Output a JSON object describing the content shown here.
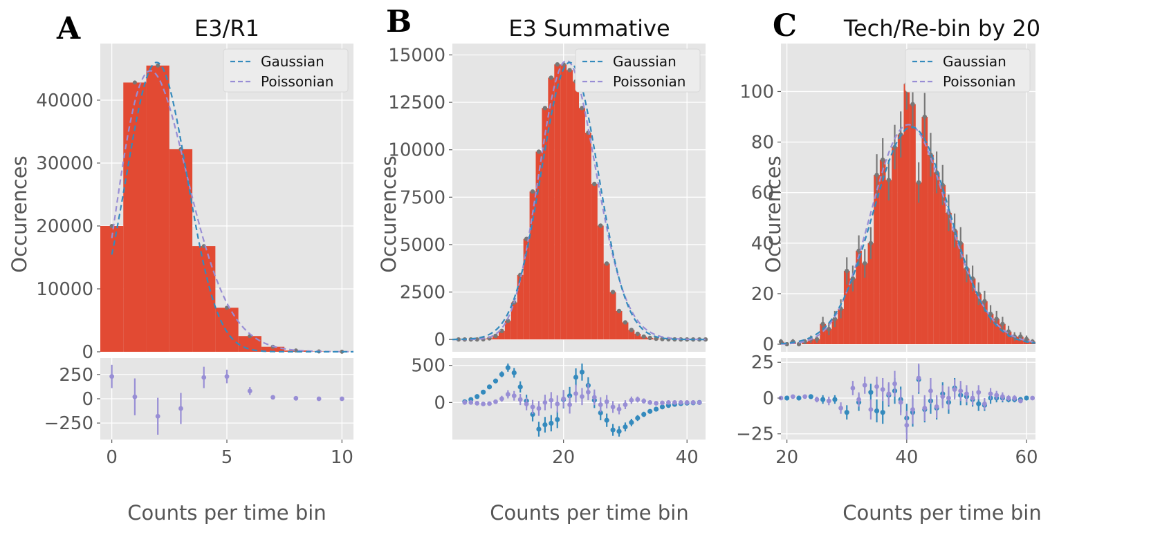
{
  "panels": [
    {
      "letter": "A",
      "title": "E3/R1",
      "xlabel": "Counts per time bin",
      "ylabel": "Occurences"
    },
    {
      "letter": "B",
      "title": "E3 Summative",
      "xlabel": "Counts per time bin",
      "ylabel": "Occurences"
    },
    {
      "letter": "C",
      "title": "Tech/Re-bin by 20",
      "xlabel": "Counts per time bin",
      "ylabel": "Occurences"
    }
  ],
  "colors": {
    "histogram": "#e24a33",
    "histogram_edge": "#c0392b",
    "gaussian": "#348abd",
    "poissonian": "#988ed5",
    "markers": "#777777",
    "plot_background": "#e5e5e5"
  },
  "chart_data": [
    {
      "type": "bar",
      "title": "E3/R1",
      "xlabel": "Counts per time bin",
      "ylabel": "Occurences",
      "grid": true,
      "legend": {
        "placement": "top-right",
        "entries": [
          "Gaussian",
          "Poissonian"
        ]
      },
      "main": {
        "xlim": [
          -0.5,
          10.5
        ],
        "ylim": [
          0,
          49000
        ],
        "xticks": [
          0,
          5,
          10
        ],
        "yticks": [
          0,
          10000,
          20000,
          30000,
          40000
        ],
        "ytick_labels": [
          "0",
          "10000",
          "20000",
          "30000",
          "40000"
        ],
        "bins": [
          0,
          1,
          2,
          3,
          4,
          5,
          6,
          7,
          8,
          9,
          10
        ],
        "bar_width": 1.0,
        "values": [
          20000,
          42800,
          45500,
          32200,
          16800,
          7000,
          2500,
          800,
          200,
          50,
          10
        ],
        "gaussian_fit": {
          "mean": 1.95,
          "sigma": 1.32,
          "amplitude": 46000
        },
        "poissonian_fit": {
          "lambda": 2.2,
          "total": 163000
        }
      },
      "residuals": {
        "xlim": [
          -0.5,
          10.5
        ],
        "ylim": [
          -420,
          420
        ],
        "yticks": [
          -250,
          0,
          250
        ],
        "ytick_labels": [
          "−250",
          "0",
          "250"
        ],
        "gaussian": [],
        "poissonian": {
          "x": [
            0,
            1,
            2,
            3,
            4,
            5,
            6,
            7,
            8,
            9,
            10
          ],
          "y": [
            230,
            20,
            -180,
            -100,
            220,
            230,
            80,
            15,
            5,
            0,
            0
          ],
          "err": [
            120,
            190,
            190,
            160,
            110,
            70,
            40,
            20,
            10,
            5,
            3
          ]
        }
      }
    },
    {
      "type": "bar",
      "title": "E3 Summative",
      "xlabel": "Counts per time bin",
      "ylabel": "Occurences",
      "grid": true,
      "legend": {
        "placement": "top-right",
        "entries": [
          "Gaussian",
          "Poissonian"
        ]
      },
      "main": {
        "xlim": [
          2,
          43
        ],
        "ylim": [
          -650,
          15600
        ],
        "xticks": [
          20,
          40
        ],
        "yticks": [
          0,
          2500,
          5000,
          7500,
          10000,
          12500,
          15000
        ],
        "ytick_labels": [
          "0",
          "2500",
          "5000",
          "7500",
          "10000",
          "12500",
          "15000"
        ],
        "bins": [
          3,
          4,
          5,
          6,
          7,
          8,
          9,
          10,
          11,
          12,
          13,
          14,
          15,
          16,
          17,
          18,
          19,
          20,
          21,
          22,
          23,
          24,
          25,
          26,
          27,
          28,
          29,
          30,
          31,
          32,
          33,
          34,
          35,
          36,
          37,
          38,
          39,
          40,
          41,
          42,
          43
        ],
        "bar_width": 1.0,
        "values": [
          0,
          0,
          0,
          0,
          10,
          60,
          190,
          450,
          980,
          1950,
          3400,
          5300,
          7800,
          9900,
          12200,
          13800,
          14500,
          14500,
          14200,
          13600,
          12200,
          10900,
          8200,
          6000,
          4000,
          2500,
          1500,
          900,
          500,
          300,
          150,
          80,
          40,
          20,
          10,
          5,
          0,
          0,
          0,
          0,
          0
        ],
        "gaussian_fit": {
          "mean": 21.0,
          "sigma": 4.6,
          "amplitude": 14600
        },
        "poissonian_fit": {
          "lambda": 21.0,
          "total": 168500
        }
      },
      "residuals": {
        "xlim": [
          2,
          43
        ],
        "ylim": [
          -500,
          600
        ],
        "yticks": [
          0,
          500
        ],
        "ytick_labels": [
          "0",
          "500"
        ],
        "gaussian": {
          "x": [
            4,
            5,
            6,
            7,
            8,
            9,
            10,
            11,
            12,
            13,
            14,
            15,
            16,
            17,
            18,
            19,
            20,
            21,
            22,
            23,
            24,
            25,
            26,
            27,
            28,
            29,
            30,
            31,
            32,
            33,
            34,
            35,
            36,
            37,
            38,
            39,
            40,
            41,
            42
          ],
          "y": [
            10,
            40,
            80,
            140,
            210,
            290,
            380,
            470,
            400,
            210,
            20,
            -160,
            -360,
            -300,
            -280,
            -230,
            40,
            90,
            340,
            410,
            230,
            30,
            -140,
            -240,
            -370,
            -390,
            -330,
            -270,
            -210,
            -160,
            -120,
            -90,
            -60,
            -40,
            -25,
            -15,
            -8,
            -4,
            0
          ],
          "err": [
            5,
            10,
            15,
            20,
            25,
            30,
            40,
            55,
            65,
            75,
            85,
            95,
            100,
            105,
            110,
            115,
            120,
            120,
            120,
            115,
            110,
            105,
            100,
            90,
            80,
            70,
            60,
            50,
            40,
            35,
            30,
            25,
            20,
            15,
            10,
            8,
            6,
            4,
            3
          ]
        },
        "poissonian": {
          "x": [
            4,
            5,
            6,
            7,
            8,
            9,
            10,
            11,
            12,
            13,
            14,
            15,
            16,
            17,
            18,
            19,
            20,
            21,
            22,
            23,
            24,
            25,
            26,
            27,
            28,
            29,
            30,
            31,
            32,
            33,
            34,
            35,
            36,
            37,
            38,
            39,
            40,
            41,
            42
          ],
          "y": [
            0,
            0,
            -10,
            -20,
            -15,
            10,
            50,
            110,
            90,
            40,
            -20,
            -60,
            -80,
            0,
            30,
            -20,
            50,
            -30,
            120,
            80,
            140,
            70,
            -30,
            10,
            -60,
            -90,
            -30,
            30,
            40,
            20,
            0,
            -10,
            -5,
            0,
            0,
            0,
            0,
            0,
            0
          ],
          "err": [
            5,
            10,
            15,
            20,
            25,
            30,
            40,
            55,
            65,
            75,
            85,
            95,
            100,
            105,
            110,
            115,
            120,
            120,
            120,
            115,
            110,
            105,
            100,
            90,
            80,
            70,
            60,
            50,
            40,
            35,
            30,
            25,
            20,
            15,
            10,
            8,
            6,
            4,
            3
          ]
        }
      }
    },
    {
      "type": "bar",
      "title": "Tech/Re-bin by 20",
      "xlabel": "Counts per time bin",
      "ylabel": "Occurences",
      "grid": true,
      "legend": {
        "placement": "top-right",
        "entries": [
          "Gaussian",
          "Poissonian"
        ]
      },
      "main": {
        "xlim": [
          19,
          61.5
        ],
        "ylim": [
          -3,
          119
        ],
        "xticks": [
          20,
          40,
          60
        ],
        "yticks": [
          0,
          20,
          40,
          60,
          80,
          100
        ],
        "ytick_labels": [
          "0",
          "20",
          "40",
          "60",
          "80",
          "100"
        ],
        "bins": [
          19,
          20,
          21,
          22,
          23,
          24,
          25,
          26,
          27,
          28,
          29,
          30,
          31,
          32,
          33,
          34,
          35,
          36,
          37,
          38,
          39,
          40,
          41,
          42,
          43,
          44,
          45,
          46,
          47,
          48,
          49,
          50,
          51,
          52,
          53,
          54,
          55,
          56,
          57,
          58,
          59,
          60,
          61
        ],
        "bar_width": 1.0,
        "values": [
          1,
          0,
          1,
          0,
          1,
          2,
          2,
          8,
          6,
          10,
          14,
          29,
          26,
          37,
          32,
          40,
          67,
          73,
          65,
          78,
          83,
          103,
          95,
          64,
          90,
          75,
          68,
          63,
          52,
          45,
          40,
          30,
          26,
          20,
          17,
          12,
          10,
          8,
          5,
          3,
          3,
          2,
          1
        ],
        "gaussian_fit": {
          "mean": 40.8,
          "sigma": 6.4,
          "amplitude": 86
        },
        "poissonian_fit": {
          "lambda": 40.8,
          "total": 1390
        }
      },
      "residuals": {
        "xlim": [
          19,
          61.5
        ],
        "ylim": [
          -29,
          28
        ],
        "yticks": [
          -25,
          0,
          25
        ],
        "ytick_labels": [
          "−25",
          "0",
          "25"
        ],
        "gaussian": {
          "x": [
            20,
            22,
            24,
            26,
            28,
            30,
            32,
            34,
            35,
            36,
            37,
            38,
            39,
            40,
            41,
            42,
            43,
            44,
            45,
            46,
            47,
            48,
            49,
            50,
            51,
            52,
            53,
            54,
            55,
            56,
            57,
            58,
            59,
            60
          ],
          "y": [
            0,
            0,
            1,
            -1,
            -1,
            -10,
            -3,
            4,
            -9,
            -10,
            2,
            5,
            -1,
            -14,
            -10,
            13,
            -8,
            -2,
            -7,
            3,
            -3,
            7,
            2,
            1,
            -1,
            -4,
            -5,
            0,
            0,
            0,
            -1,
            -1,
            -1,
            0
          ],
          "err": [
            1,
            1,
            1,
            3,
            3,
            5,
            6,
            6,
            8,
            8,
            8,
            9,
            9,
            10,
            10,
            10,
            9,
            9,
            8,
            8,
            8,
            7,
            7,
            6,
            5,
            5,
            4,
            4,
            3,
            3,
            2,
            2,
            1,
            1
          ]
        },
        "poissonian": {
          "x": [
            19,
            21,
            23,
            25,
            27,
            29,
            31,
            32,
            33,
            34,
            35,
            36,
            37,
            38,
            39,
            40,
            41,
            42,
            43,
            44,
            45,
            46,
            47,
            48,
            49,
            50,
            51,
            52,
            53,
            54,
            55,
            56,
            57,
            58,
            59,
            61
          ],
          "y": [
            0,
            1,
            1,
            -1,
            -2,
            -7,
            7,
            -1,
            9,
            -8,
            8,
            6,
            3,
            10,
            -3,
            -19,
            -8,
            14,
            -7,
            5,
            -6,
            1,
            0,
            6,
            5,
            3,
            0,
            4,
            -4,
            3,
            2,
            1,
            0,
            0,
            -2,
            0
          ],
          "err": [
            1,
            1,
            1,
            2,
            3,
            4,
            5,
            5,
            6,
            7,
            7,
            8,
            8,
            9,
            9,
            10,
            10,
            10,
            9,
            9,
            8,
            8,
            8,
            7,
            7,
            6,
            5,
            5,
            4,
            4,
            3,
            3,
            2,
            2,
            1,
            1
          ]
        }
      }
    }
  ]
}
